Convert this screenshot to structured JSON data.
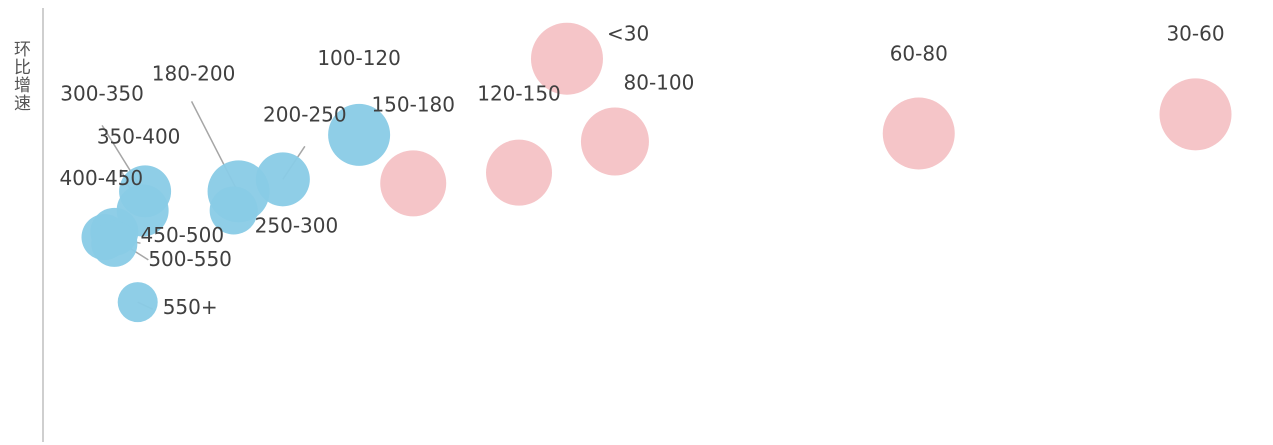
{
  "chart_data": {
    "type": "bubble",
    "title": "",
    "xlabel": "",
    "ylabel": "环比增速",
    "grid": false,
    "legend": "none",
    "colors": {
      "blue": "#89CBE6",
      "pink": "#F4C2C5",
      "axis": "#BFBFBF",
      "leader": "#A6A6A6",
      "label": "#404040"
    },
    "points": [
      {
        "label": "<30",
        "color": "pink",
        "x": 0.426,
        "y": 0.868,
        "size": 36
      },
      {
        "label": "30-60",
        "color": "pink",
        "x": 0.937,
        "y": 0.743,
        "size": 36
      },
      {
        "label": "60-80",
        "color": "pink",
        "x": 0.712,
        "y": 0.7,
        "size": 36
      },
      {
        "label": "80-100",
        "color": "pink",
        "x": 0.465,
        "y": 0.682,
        "size": 34
      },
      {
        "label": "100-120",
        "color": "blue",
        "x": 0.257,
        "y": 0.697,
        "size": 31
      },
      {
        "label": "120-150",
        "color": "pink",
        "x": 0.387,
        "y": 0.612,
        "size": 33
      },
      {
        "label": "150-180",
        "color": "pink",
        "x": 0.301,
        "y": 0.588,
        "size": 33
      },
      {
        "label": "180-200",
        "color": "blue",
        "x": 0.159,
        "y": 0.57,
        "size": 31
      },
      {
        "label": "200-250",
        "color": "blue",
        "x": 0.195,
        "y": 0.597,
        "size": 27
      },
      {
        "label": "250-300",
        "color": "blue",
        "x": 0.155,
        "y": 0.527,
        "size": 24
      },
      {
        "label": "300-350",
        "color": "blue",
        "x": 0.083,
        "y": 0.57,
        "size": 26
      },
      {
        "label": "350-400",
        "color": "blue",
        "x": 0.081,
        "y": 0.527,
        "size": 26
      },
      {
        "label": "400-450",
        "color": "blue",
        "x": 0.058,
        "y": 0.479,
        "size": 24
      },
      {
        "label": "450-500",
        "color": "blue",
        "x": 0.05,
        "y": 0.467,
        "size": 23
      },
      {
        "label": "500-550",
        "color": "blue",
        "x": 0.058,
        "y": 0.452,
        "size": 23
      },
      {
        "label": "550+",
        "color": "blue",
        "x": 0.077,
        "y": 0.321,
        "size": 20
      }
    ]
  }
}
